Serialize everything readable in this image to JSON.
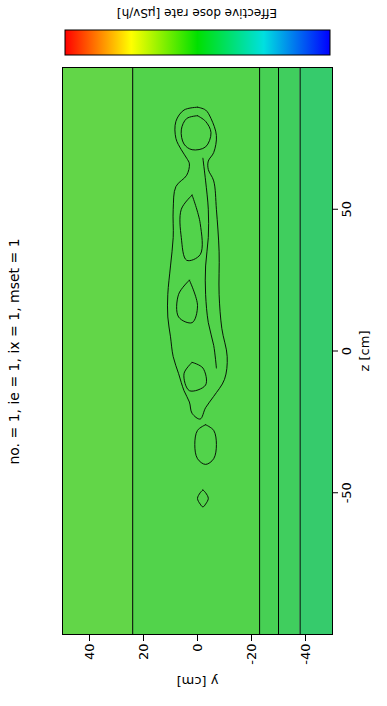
{
  "chart_data": {
    "type": "field",
    "title": "no. = 1, ie = 1, ix = 1, mset = 1",
    "xlabel": "z [cm]",
    "ylabel": "y [cm]",
    "xlim": [
      -100,
      100
    ],
    "xticks": [
      -50,
      0,
      50
    ],
    "ylim": [
      -50,
      50
    ],
    "yticks": [
      -40,
      -20,
      0,
      20,
      40
    ],
    "bands": [
      {
        "y": [
          24,
          50
        ],
        "color": "#62d648"
      },
      {
        "y": [
          -23,
          24
        ],
        "color": "#52d34b"
      },
      {
        "y": [
          -30,
          -23
        ],
        "color": "#47d054"
      },
      {
        "y": [
          -38,
          -30
        ],
        "color": "#40ce5e"
      },
      {
        "y": [
          -50,
          -38
        ],
        "color": "#36cb6c"
      }
    ],
    "outlines": [
      [
        [
          86,
          0
        ],
        [
          85,
          5
        ],
        [
          81,
          8
        ],
        [
          75,
          8
        ],
        [
          71,
          6
        ],
        [
          68,
          4
        ],
        [
          66,
          3
        ],
        [
          62,
          4
        ],
        [
          58,
          8
        ],
        [
          50,
          9
        ],
        [
          40,
          9
        ],
        [
          30,
          10
        ],
        [
          20,
          11
        ],
        [
          12,
          11
        ],
        [
          5,
          10
        ],
        [
          -2,
          9
        ],
        [
          -8,
          7
        ],
        [
          -14,
          5
        ],
        [
          -18,
          3
        ],
        [
          -22,
          2
        ],
        [
          -24,
          -1
        ],
        [
          -20,
          -3
        ],
        [
          -16,
          -6
        ],
        [
          -10,
          -10
        ],
        [
          -2,
          -11
        ],
        [
          8,
          -9
        ],
        [
          20,
          -8
        ],
        [
          35,
          -8
        ],
        [
          50,
          -7
        ],
        [
          60,
          -6
        ],
        [
          64,
          -4
        ],
        [
          67,
          -4
        ],
        [
          70,
          -6
        ],
        [
          76,
          -7
        ],
        [
          82,
          -5
        ],
        [
          85,
          -3
        ],
        [
          86,
          0
        ]
      ],
      [
        [
          83,
          0
        ],
        [
          82,
          4
        ],
        [
          78,
          6
        ],
        [
          73,
          5
        ],
        [
          71,
          2
        ],
        [
          72,
          -3
        ],
        [
          77,
          -5
        ],
        [
          81,
          -3
        ],
        [
          83,
          0
        ]
      ],
      [
        [
          68,
          -2
        ],
        [
          60,
          -3
        ],
        [
          50,
          -4
        ],
        [
          40,
          -4
        ],
        [
          30,
          -3
        ],
        [
          20,
          -3
        ],
        [
          10,
          -4
        ],
        [
          2,
          -6
        ],
        [
          -6,
          -7
        ]
      ],
      [
        [
          55,
          2
        ],
        [
          50,
          6
        ],
        [
          40,
          6
        ],
        [
          32,
          4
        ],
        [
          34,
          -1
        ],
        [
          45,
          -1
        ],
        [
          55,
          2
        ]
      ],
      [
        [
          25,
          3
        ],
        [
          20,
          7
        ],
        [
          12,
          7
        ],
        [
          10,
          2
        ],
        [
          16,
          0
        ],
        [
          25,
          3
        ]
      ],
      [
        [
          -4,
          2
        ],
        [
          -8,
          5
        ],
        [
          -14,
          3
        ],
        [
          -12,
          -3
        ],
        [
          -6,
          -2
        ],
        [
          -4,
          2
        ]
      ],
      [
        [
          -26,
          -3
        ],
        [
          -28,
          0
        ],
        [
          -33,
          1
        ],
        [
          -38,
          0
        ],
        [
          -40,
          -3
        ],
        [
          -38,
          -6
        ],
        [
          -33,
          -7
        ],
        [
          -28,
          -6
        ],
        [
          -26,
          -3
        ]
      ],
      [
        [
          -49,
          -2
        ],
        [
          -50,
          -1
        ],
        [
          -52,
          0
        ],
        [
          -54,
          -1
        ],
        [
          -55,
          -2
        ],
        [
          -54,
          -3
        ],
        [
          -52,
          -4
        ],
        [
          -50,
          -3
        ],
        [
          -49,
          -2
        ]
      ]
    ],
    "colorbar": {
      "label": "Effective dose rate [μSv/h]",
      "colors": [
        "#ff0000",
        "#ffff00",
        "#00e000",
        "#00e0e0",
        "#0000ff"
      ]
    }
  }
}
